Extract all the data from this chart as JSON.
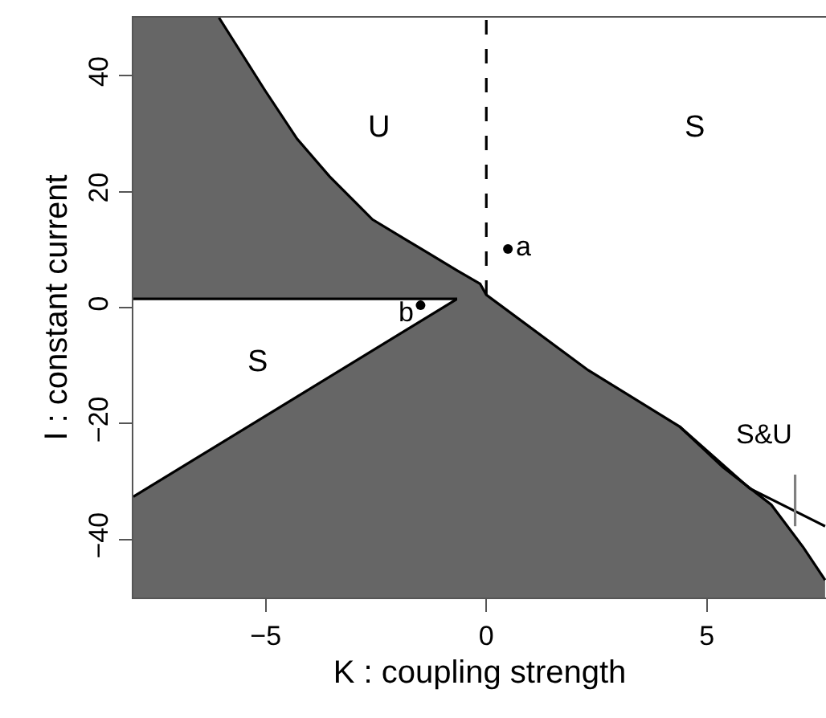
{
  "chart_data": {
    "type": "line",
    "xlabel": "K : coupling strength",
    "ylabel": "I : constant current",
    "xlim": [
      -8,
      7.7
    ],
    "ylim": [
      -50,
      50
    ],
    "xticks": [
      {
        "value": -5,
        "label": "−5"
      },
      0,
      5
    ],
    "yticks": [
      {
        "value": -40,
        "label": "−40"
      },
      {
        "value": -20,
        "label": "−20"
      },
      0,
      20,
      40
    ],
    "marker": "none",
    "line_style": "solid",
    "series": [
      {
        "color": "#000000",
        "x": [
          -8,
          -6.06,
          -5.02,
          -4.29,
          -3.55,
          -2.58,
          -1.36,
          -0.66
        ],
        "values": [
          1.5,
          1.5,
          1.5,
          1.5,
          1.5,
          1.5,
          1.5,
          1.5
        ],
        "lower": [
          1.5,
          1.5,
          1.5,
          1.5,
          1.5,
          1.5,
          1.5,
          1.5
        ],
        "upper": [
          50,
          50,
          37.5,
          29.1,
          22.6,
          15.2,
          9.6,
          6.4
        ]
      },
      {
        "color": "#000000",
        "x": [
          -8,
          -0.66
        ],
        "values": [
          -32.6,
          1.5
        ],
        "lower": [
          -50,
          -50
        ],
        "upper": [
          -32.6,
          1.5
        ]
      },
      {
        "color": "#000000",
        "x": [
          -6.06,
          -5.02,
          -4.29,
          -3.55,
          -2.58,
          -1.36,
          -0.66,
          -0.14,
          0,
          2.31,
          4.38,
          5.36,
          6.46,
          7.19,
          7.68
        ],
        "values": [
          50,
          37.5,
          29.1,
          22.6,
          15.2,
          9.6,
          6.4,
          4.1,
          2.2,
          -10.8,
          -20.5,
          -27.5,
          -34,
          -41.4,
          -47
        ],
        "lower": [
          null,
          null,
          null,
          null,
          null,
          null,
          -50,
          -50,
          -50,
          -50,
          -50,
          -50,
          -50,
          -50,
          -50
        ],
        "upper": [
          null,
          null,
          null,
          null,
          null,
          null,
          6.4,
          4.1,
          2.2,
          -10.8,
          -20.5,
          -27.5,
          -34,
          -41.4,
          -47
        ]
      },
      {
        "color": "#000000",
        "x": [
          4.38,
          5.97,
          7.68
        ],
        "values": [
          -20.5,
          -31.2,
          -37.7
        ]
      },
      {
        "color": "#000000",
        "line_style": "dashed",
        "x": [
          0,
          0
        ],
        "values": [
          2.2,
          50
        ]
      },
      {
        "color": "#808080",
        "x": [
          7,
          7
        ],
        "values": [
          -28.8,
          -37.7
        ]
      },
      {
        "type": "scatter",
        "color": "#000000",
        "marker": "circle",
        "x": [
          0.49,
          -1.49
        ],
        "values": [
          10.1,
          0.4
        ]
      }
    ],
    "annotations": [
      "U",
      "S",
      "S",
      "S&U",
      {
        "text": "a",
        "x": 0.49,
        "y": 10.1
      },
      {
        "text": "b",
        "x": -1.49,
        "y": 0.4
      }
    ]
  }
}
